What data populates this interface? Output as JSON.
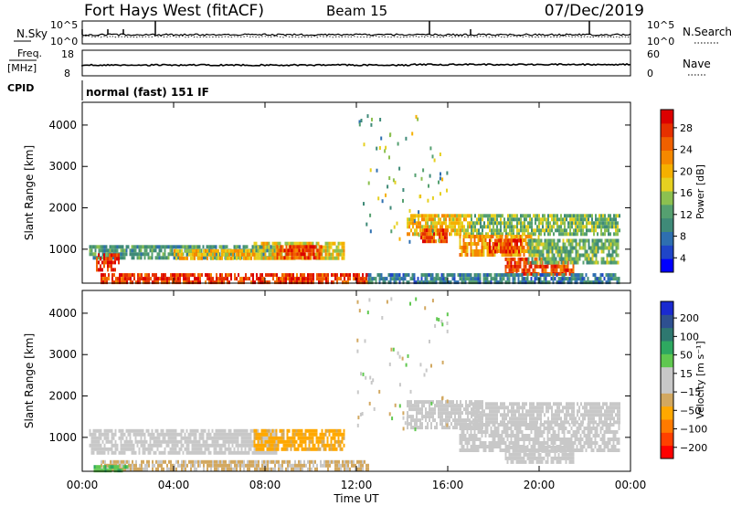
{
  "header": {
    "station": "Fort Hays West (fitACF)",
    "beam": "Beam 15",
    "date": "07/Dec/2019"
  },
  "strips": {
    "nsky": {
      "label": "N.Sky",
      "ticks": [
        "10^5",
        "10^0"
      ]
    },
    "nsearch": {
      "label": "N.Search",
      "ticks": [
        "10^5",
        "10^0"
      ]
    },
    "freq": {
      "label_line1": "Freq.",
      "label_line2": "[MHz]",
      "ticks": [
        "18",
        "8"
      ]
    },
    "nave": {
      "label": "Nave",
      "ticks": [
        "60",
        "0"
      ]
    },
    "cpid": {
      "label": "CPID",
      "mode": "normal (fast) 151 IF"
    }
  },
  "colorbars": {
    "power": {
      "label": "Power [dB]",
      "tick_labels": [
        "28",
        "24",
        "20",
        "16",
        "12",
        "8",
        "4"
      ],
      "colors": [
        "#0000ff",
        "#1f45c8",
        "#2e6fb0",
        "#3f8a78",
        "#55a070",
        "#8cc050",
        "#e6d020",
        "#f5b000",
        "#f58800",
        "#f06000",
        "#e63000",
        "#dc0000"
      ],
      "range": [
        0,
        30
      ]
    },
    "velocity": {
      "label": "Velocity [m s⁻¹]",
      "tick_labels": [
        "200",
        "100",
        "50",
        "15",
        "−15",
        "−50",
        "−100",
        "−200"
      ],
      "colors": [
        "#ff0000",
        "#ff4000",
        "#ff7a00",
        "#ffa800",
        "#d2a860",
        "#c8c8c8",
        "#c8c8c8",
        "#60c850",
        "#2ea860",
        "#2e7870",
        "#2e5090",
        "#1a2ad0"
      ]
    }
  },
  "chart_data": [
    {
      "type": "heatmap",
      "panel": "power",
      "ylabel": "Slant Range [km]",
      "yticks": [
        1000,
        2000,
        3000,
        4000
      ],
      "ylim": [
        180,
        4550
      ],
      "xlim": [
        0,
        24
      ],
      "xtick_labels": [
        "00:00",
        "04:00",
        "08:00",
        "12:00",
        "16:00",
        "20:00",
        "00:00"
      ],
      "regions": [
        {
          "t0": 0.3,
          "t1": 8.5,
          "r0": 750,
          "r1": 1100,
          "level": 10
        },
        {
          "t0": 0.6,
          "t1": 1.6,
          "r0": 500,
          "r1": 900,
          "level": 27
        },
        {
          "t0": 0.8,
          "t1": 12.5,
          "r0": 240,
          "r1": 420,
          "level": 26
        },
        {
          "t0": 4.0,
          "t1": 7.5,
          "r0": 750,
          "r1": 1000,
          "level": 18
        },
        {
          "t0": 7.5,
          "t1": 11.5,
          "r0": 780,
          "r1": 1180,
          "level": 17
        },
        {
          "t0": 8.5,
          "t1": 10.5,
          "r0": 800,
          "r1": 1100,
          "level": 25
        },
        {
          "t0": 14.2,
          "t1": 17.0,
          "r0": 1350,
          "r1": 1850,
          "level": 18
        },
        {
          "t0": 14.8,
          "t1": 16.0,
          "r0": 1150,
          "r1": 1500,
          "level": 25
        },
        {
          "t0": 17.0,
          "t1": 23.5,
          "r0": 1400,
          "r1": 1850,
          "level": 13
        },
        {
          "t0": 16.5,
          "t1": 20.0,
          "r0": 850,
          "r1": 1350,
          "level": 20
        },
        {
          "t0": 17.8,
          "t1": 19.2,
          "r0": 950,
          "r1": 1250,
          "level": 26
        },
        {
          "t0": 18.5,
          "t1": 21.5,
          "r0": 400,
          "r1": 800,
          "level": 25
        },
        {
          "t0": 19.5,
          "t1": 23.5,
          "r0": 700,
          "r1": 1250,
          "level": 12
        },
        {
          "t0": 12.5,
          "t1": 23.5,
          "r0": 220,
          "r1": 420,
          "level": 8
        }
      ]
    },
    {
      "type": "heatmap",
      "panel": "velocity",
      "ylabel": "Slant Range [km]",
      "yticks": [
        1000,
        2000,
        3000,
        4000
      ],
      "ylim": [
        180,
        4550
      ],
      "xlim": [
        0,
        24
      ],
      "xtick_labels": [
        "00:00",
        "04:00",
        "08:00",
        "12:00",
        "16:00",
        "20:00",
        "00:00"
      ],
      "xlabel": "Time UT",
      "regions": [
        {
          "t0": 0.3,
          "t1": 8.5,
          "r0": 650,
          "r1": 1200,
          "vel": 0
        },
        {
          "t0": 0.8,
          "t1": 12.5,
          "r0": 230,
          "r1": 450,
          "vel": -20
        },
        {
          "t0": 7.5,
          "t1": 11.5,
          "r0": 700,
          "r1": 1200,
          "vel": -60
        },
        {
          "t0": 14.2,
          "t1": 17.5,
          "r0": 1200,
          "r1": 1900,
          "vel": 0
        },
        {
          "t0": 17.0,
          "t1": 23.5,
          "r0": 1400,
          "r1": 1850,
          "vel": 0
        },
        {
          "t0": 16.5,
          "t1": 23.5,
          "r0": 650,
          "r1": 1350,
          "vel": 0
        },
        {
          "t0": 18.5,
          "t1": 21.5,
          "r0": 400,
          "r1": 800,
          "vel": 0
        },
        {
          "t0": 0.5,
          "t1": 2.0,
          "r0": 200,
          "r1": 330,
          "vel": 45
        }
      ]
    }
  ]
}
